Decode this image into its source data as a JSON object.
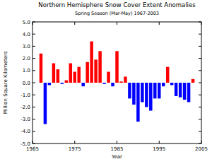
{
  "chart_data": {
    "type": "bar",
    "title": "Northern Hemisphere Snow Cover Extent Anomalies",
    "subtitle": "Spring Season (Mar-May) 1967-2003",
    "x_label": "Year",
    "y_label": "Million Square Kilometers",
    "x": [
      1967,
      1968,
      1969,
      1970,
      1971,
      1972,
      1973,
      1974,
      1975,
      1976,
      1977,
      1978,
      1979,
      1980,
      1981,
      1982,
      1983,
      1984,
      1985,
      1986,
      1987,
      1988,
      1989,
      1990,
      1991,
      1992,
      1993,
      1994,
      1995,
      1996,
      1997,
      1998,
      1999,
      2000,
      2001,
      2002,
      2003
    ],
    "values": [
      2.4,
      -3.4,
      -0.2,
      1.6,
      1.1,
      -0.1,
      0.2,
      1.6,
      0.9,
      1.3,
      -0.3,
      1.7,
      3.4,
      1.9,
      2.6,
      -0.1,
      0.9,
      -0.3,
      2.6,
      0.1,
      0.5,
      -1.3,
      -1.8,
      -3.2,
      -1.6,
      -2.0,
      -2.3,
      -1.3,
      -1.3,
      -0.3,
      1.3,
      -0.2,
      -1.1,
      -1.2,
      -1.4,
      -1.6,
      0.3
    ],
    "colors": [
      "#ff0000",
      "#0000ff",
      "#0000ff",
      "#ff0000",
      "#ff0000",
      "#0000ff",
      "#ff0000",
      "#ff0000",
      "#ff0000",
      "#ff0000",
      "#0000ff",
      "#ff0000",
      "#ff0000",
      "#ff0000",
      "#ff0000",
      "#0000ff",
      "#ff0000",
      "#0000ff",
      "#ff0000",
      "#ff0000",
      "#ff0000",
      "#0000ff",
      "#0000ff",
      "#0000ff",
      "#0000ff",
      "#0000ff",
      "#0000ff",
      "#0000ff",
      "#0000ff",
      "#0000ff",
      "#ff0000",
      "#0000ff",
      "#0000ff",
      "#0000ff",
      "#0000ff",
      "#0000ff",
      "#ff0000"
    ],
    "xlim": [
      1965,
      2005
    ],
    "xticks": [
      1965,
      1975,
      1985,
      1995,
      2005
    ],
    "ylim": [
      -5,
      5
    ],
    "yticks": [
      {
        "value": -5,
        "label": "-5.0"
      },
      {
        "value": -4,
        "label": "-4.0"
      },
      {
        "value": -3,
        "label": "-3.0"
      },
      {
        "value": -2,
        "label": "-2.0"
      },
      {
        "value": -1,
        "label": "-1.0"
      },
      {
        "value": 0,
        "label": "0.0"
      },
      {
        "value": 1,
        "label": "1.0"
      },
      {
        "value": 2,
        "label": "2.0"
      },
      {
        "value": 3,
        "label": "3.0"
      },
      {
        "value": 4,
        "label": "4.0"
      },
      {
        "value": 5,
        "label": "5.0"
      }
    ],
    "grid": false
  }
}
